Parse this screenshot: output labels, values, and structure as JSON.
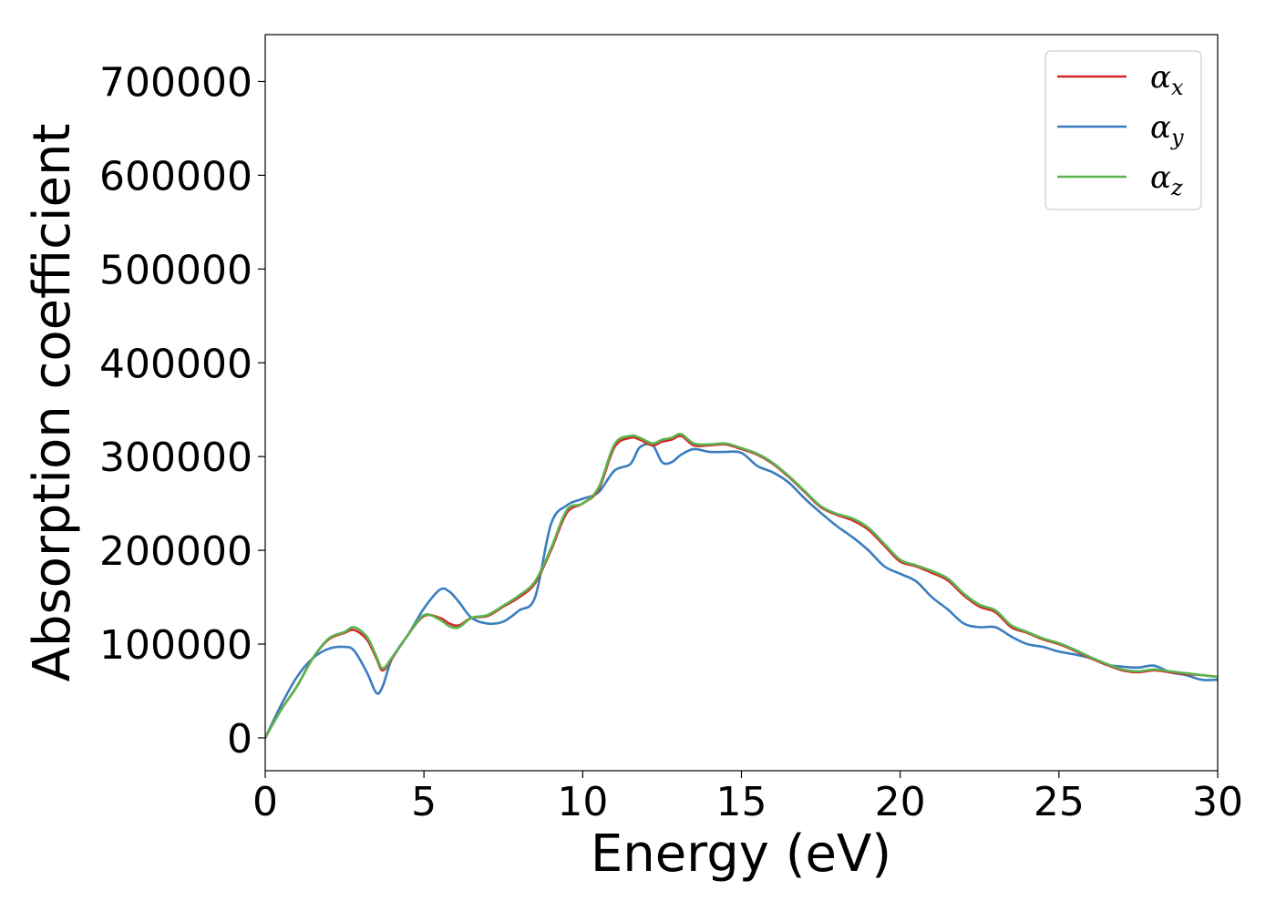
{
  "chart_data": {
    "type": "line",
    "title": "",
    "xlabel": "Energy (eV)",
    "ylabel": "Absorption coefficient",
    "xlim": [
      0,
      30
    ],
    "ylim": [
      -35000,
      750000
    ],
    "xticks": [
      0,
      5,
      10,
      15,
      20,
      25,
      30
    ],
    "yticks": [
      0,
      100000,
      200000,
      300000,
      400000,
      500000,
      600000,
      700000
    ],
    "grid": false,
    "legend_position": "top-right",
    "series": [
      {
        "name": "αx",
        "name_base": "α",
        "name_sub": "x",
        "color": "#d62728",
        "x": [
          0,
          0.5,
          1,
          1.5,
          2,
          2.5,
          2.8,
          3.2,
          3.5,
          3.7,
          4,
          4.5,
          5,
          5.5,
          5.8,
          6.1,
          6.5,
          7,
          7.5,
          8,
          8.5,
          9,
          9.5,
          10,
          10.5,
          11,
          11.5,
          11.8,
          12.2,
          12.5,
          12.8,
          13.1,
          13.5,
          14,
          14.5,
          15,
          15.5,
          16,
          16.5,
          17,
          17.5,
          18,
          18.5,
          19,
          19.5,
          20,
          20.5,
          21,
          21.5,
          22,
          22.5,
          23,
          23.5,
          24,
          24.5,
          25,
          25.5,
          26,
          26.5,
          27,
          27.5,
          28,
          28.5,
          29,
          29.5,
          30
        ],
        "y": [
          0,
          30000,
          55000,
          85000,
          105000,
          112000,
          115000,
          105000,
          85000,
          72000,
          85000,
          110000,
          130000,
          128000,
          122000,
          120000,
          128000,
          130000,
          140000,
          150000,
          165000,
          200000,
          240000,
          250000,
          265000,
          310000,
          320000,
          318000,
          312000,
          316000,
          318000,
          322000,
          312000,
          312000,
          313000,
          308000,
          302000,
          292000,
          278000,
          262000,
          246000,
          238000,
          232000,
          222000,
          205000,
          188000,
          183000,
          176000,
          168000,
          152000,
          140000,
          134000,
          118000,
          112000,
          105000,
          100000,
          93000,
          85000,
          78000,
          72000,
          70000,
          72000,
          70000,
          68000,
          67000,
          65000
        ]
      },
      {
        "name": "αy",
        "name_base": "α",
        "name_sub": "y",
        "color": "#3a7dbf",
        "x": [
          0,
          0.5,
          1,
          1.5,
          2,
          2.5,
          2.8,
          3.2,
          3.5,
          3.7,
          4,
          4.5,
          5,
          5.5,
          5.8,
          6.1,
          6.5,
          7,
          7.5,
          8,
          8.5,
          9,
          9.5,
          10,
          10.5,
          11,
          11.5,
          11.8,
          12.2,
          12.5,
          12.8,
          13.1,
          13.5,
          14,
          14.5,
          15,
          15.5,
          16,
          16.5,
          17,
          17.5,
          18,
          18.5,
          19,
          19.5,
          20,
          20.5,
          21,
          21.5,
          22,
          22.5,
          23,
          23.5,
          24,
          24.5,
          25,
          25.5,
          26,
          26.5,
          27,
          27.5,
          28,
          28.5,
          29,
          29.5,
          30
        ],
        "y": [
          0,
          35000,
          65000,
          85000,
          95000,
          97000,
          93000,
          70000,
          48000,
          55000,
          85000,
          110000,
          138000,
          158000,
          156000,
          145000,
          128000,
          122000,
          124000,
          136000,
          150000,
          228000,
          248000,
          255000,
          262000,
          285000,
          292000,
          310000,
          312000,
          294000,
          294000,
          302000,
          308000,
          305000,
          305000,
          304000,
          290000,
          283000,
          272000,
          255000,
          240000,
          226000,
          214000,
          200000,
          183000,
          175000,
          167000,
          150000,
          137000,
          122000,
          118000,
          118000,
          108000,
          100000,
          97000,
          92000,
          89000,
          85000,
          78000,
          76000,
          75000,
          77000,
          70000,
          67000,
          62000,
          62000
        ]
      },
      {
        "name": "αz",
        "name_base": "α",
        "name_sub": "z",
        "color": "#5ab34f",
        "x": [
          0,
          0.5,
          1,
          1.5,
          2,
          2.5,
          2.8,
          3.2,
          3.5,
          3.7,
          4,
          4.5,
          5,
          5.5,
          5.8,
          6.1,
          6.5,
          7,
          7.5,
          8,
          8.5,
          9,
          9.5,
          10,
          10.5,
          11,
          11.5,
          11.8,
          12.2,
          12.5,
          12.8,
          13.1,
          13.5,
          14,
          14.5,
          15,
          15.5,
          16,
          16.5,
          17,
          17.5,
          18,
          18.5,
          19,
          19.5,
          20,
          20.5,
          21,
          21.5,
          22,
          22.5,
          23,
          23.5,
          24,
          24.5,
          25,
          25.5,
          26,
          26.5,
          27,
          27.5,
          28,
          28.5,
          29,
          29.5,
          30
        ],
        "y": [
          0,
          30000,
          55000,
          85000,
          106000,
          113000,
          118000,
          108000,
          87000,
          74000,
          86000,
          110000,
          131000,
          126000,
          119000,
          118000,
          128000,
          131000,
          141000,
          152000,
          167000,
          202000,
          243000,
          250000,
          267000,
          313000,
          322000,
          320000,
          314000,
          318000,
          320000,
          324000,
          314000,
          313000,
          314000,
          309000,
          303000,
          293000,
          279000,
          263000,
          247000,
          239000,
          234000,
          224000,
          207000,
          190000,
          184000,
          178000,
          170000,
          154000,
          142000,
          136000,
          120000,
          113000,
          106000,
          101000,
          94000,
          86000,
          79000,
          73000,
          71000,
          73000,
          71000,
          69000,
          67000,
          65000
        ]
      }
    ]
  }
}
